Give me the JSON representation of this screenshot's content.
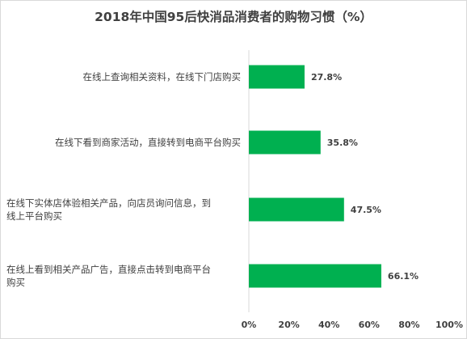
{
  "chart_data": {
    "type": "bar",
    "orientation": "horizontal",
    "title": "2018年中国95后快消品消费者的购物习惯（%）",
    "categories": [
      "在线上查询相关资料，在线下门店购买",
      "在线下看到商家活动，直接转到电商平台购买",
      "在线下实体店体验相关产品，向店员询问信息，到线上平台购买",
      "在线上看到相关产品广告，直接点击转到电商平台购买"
    ],
    "category_lines": [
      [
        "在线上查询相关资料，在线下门店购买"
      ],
      [
        "在线下看到商家活动，直接转到电商平台购买"
      ],
      [
        "在线下实体店体验相关产品，向店员询问信息，到",
        "线上平台购买"
      ],
      [
        "在线上看到相关产品广告，直接点击转到电商平台",
        "购买"
      ]
    ],
    "values": [
      27.8,
      35.8,
      47.5,
      66.1
    ],
    "value_labels": [
      "27.8%",
      "35.8%",
      "47.5%",
      "66.1%"
    ],
    "xlim": [
      0,
      100
    ],
    "xticks": [
      "0%",
      "20%",
      "40%",
      "60%",
      "80%",
      "100%"
    ],
    "bar_color": "#00b050",
    "grid": false
  }
}
